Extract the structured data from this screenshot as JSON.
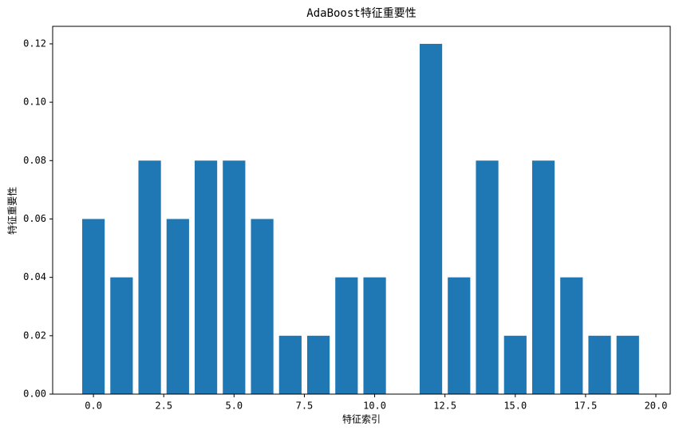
{
  "chart_data": {
    "type": "bar",
    "title": "AdaBoost特征重要性",
    "xlabel": "特征索引",
    "ylabel": "特征重要性",
    "x": [
      0,
      1,
      2,
      3,
      4,
      5,
      6,
      7,
      8,
      9,
      10,
      11,
      12,
      13,
      14,
      15,
      16,
      17,
      18,
      19
    ],
    "values": [
      0.06,
      0.04,
      0.08,
      0.06,
      0.08,
      0.08,
      0.06,
      0.02,
      0.02,
      0.04,
      0.04,
      0,
      0.12,
      0.04,
      0.08,
      0.02,
      0.08,
      0.04,
      0.02,
      0.02
    ],
    "color": "#1f77b4",
    "xlim": [
      -1.45,
      20.51
    ],
    "xticks": [
      {
        "value": 0,
        "label": "0.0"
      },
      2.5,
      {
        "value": 5,
        "label": "5.0"
      },
      7.5,
      {
        "value": 10,
        "label": "10.0"
      },
      12.5,
      {
        "value": 15,
        "label": "15.0"
      },
      17.5,
      {
        "value": 20,
        "label": "20.0"
      }
    ],
    "ylim": [
      0,
      0.126
    ],
    "yticks": [
      {
        "value": 0,
        "label": "0.00"
      },
      {
        "value": 0.02,
        "label": "0.02"
      },
      {
        "value": 0.04,
        "label": "0.04"
      },
      {
        "value": 0.06,
        "label": "0.06"
      },
      {
        "value": 0.08,
        "label": "0.08"
      },
      {
        "value": 0.1,
        "label": "0.10"
      },
      {
        "value": 0.12,
        "label": "0.12"
      }
    ]
  }
}
